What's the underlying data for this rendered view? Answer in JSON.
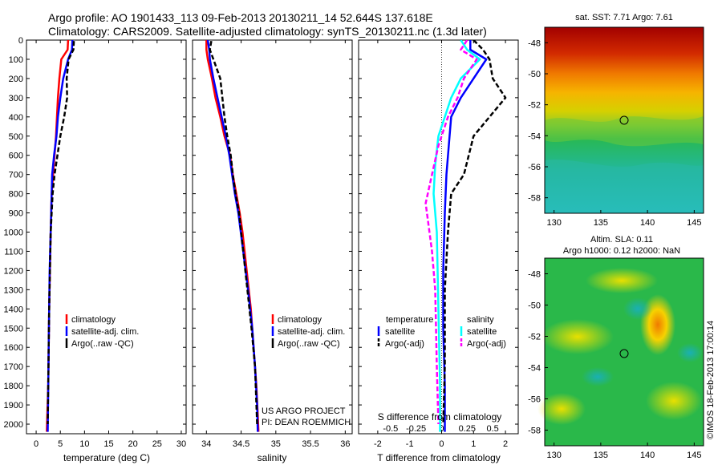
{
  "title": {
    "line1": "Argo profile: AO 1901433_113 09-Feb-2013 20130211_14 52.644S 137.618E",
    "line2": "Climatology: CARS2009. Satellite-adjusted climatology: synTS_20130211.nc (1.3d later)"
  },
  "colors": {
    "climatology": "#ff0000",
    "satellite": "#0000ff",
    "argo": "#000000",
    "salinity_satellite": "#00ffff",
    "salinity_argo": "#ff00ff"
  },
  "chart_data": [
    {
      "type": "line",
      "name": "temperature",
      "xlabel": "temperature (deg C)",
      "ylabel": "",
      "xlim": [
        -2,
        31
      ],
      "ylim": [
        2050,
        0
      ],
      "xticks": [
        0,
        5,
        10,
        15,
        20,
        25,
        30
      ],
      "yticks": [
        0,
        100,
        200,
        300,
        400,
        500,
        600,
        700,
        800,
        900,
        1000,
        1100,
        1200,
        1300,
        1400,
        1500,
        1600,
        1700,
        1800,
        1900,
        2000
      ],
      "legend": [
        "climatology",
        "satellite-adj. clim.",
        "Argo(..raw -QC)"
      ],
      "series": [
        {
          "name": "climatology",
          "x": [
            6.6,
            6.5,
            5.2,
            4.8,
            4.5,
            4.3,
            4.1,
            3.8,
            3.5,
            3.2,
            3.0,
            2.7,
            2.5,
            2.2
          ],
          "y": [
            0,
            50,
            100,
            200,
            300,
            400,
            500,
            600,
            700,
            800,
            1000,
            1400,
            1800,
            2040
          ]
        },
        {
          "name": "satellite-adj. clim.",
          "x": [
            7.5,
            7.4,
            6.6,
            5.6,
            5.0,
            4.5,
            4.2,
            3.7,
            3.3,
            3.1,
            2.8,
            2.6,
            2.4
          ],
          "y": [
            0,
            50,
            100,
            200,
            300,
            400,
            500,
            600,
            700,
            900,
            1200,
            1600,
            2040
          ]
        },
        {
          "name": "Argo(..raw -QC)",
          "x": [
            7.8,
            7.7,
            6.7,
            6.3,
            6.4,
            5.8,
            5.0,
            4.4,
            3.8,
            3.4,
            3.0,
            2.7,
            2.5,
            2.4
          ],
          "y": [
            5,
            50,
            100,
            200,
            300,
            400,
            500,
            600,
            700,
            800,
            1000,
            1400,
            1800,
            2000
          ]
        }
      ]
    },
    {
      "type": "line",
      "name": "salinity",
      "xlabel": "salinity",
      "ylabel": "",
      "xlim": [
        33.8,
        36.1
      ],
      "ylim": [
        2050,
        0
      ],
      "xticks": [
        34,
        34.5,
        35,
        35.5,
        36
      ],
      "legend": [
        "climatology",
        "satellite-adj. clim.",
        "Argo(..raw -QC)"
      ],
      "annotation": [
        "US ARGO PROJECT",
        "PI: DEAN ROEMMICH"
      ],
      "series": [
        {
          "name": "climatology",
          "x": [
            34.0,
            34.0,
            34.02,
            34.08,
            34.13,
            34.2,
            34.26,
            34.34,
            34.38,
            34.43,
            34.48,
            34.52,
            34.58,
            34.64,
            34.68,
            34.72,
            34.74,
            34.75
          ],
          "y": [
            0,
            50,
            100,
            200,
            300,
            400,
            500,
            600,
            700,
            800,
            900,
            1000,
            1200,
            1400,
            1600,
            1800,
            1950,
            2040
          ]
        },
        {
          "name": "satellite-adj. clim.",
          "x": [
            34.02,
            34.04,
            34.05,
            34.1,
            34.16,
            34.22,
            34.28,
            34.33,
            34.37,
            34.41,
            34.46,
            34.53,
            34.6,
            34.66,
            34.7,
            34.73,
            34.74
          ],
          "y": [
            0,
            50,
            100,
            200,
            300,
            400,
            500,
            600,
            700,
            800,
            900,
            1100,
            1300,
            1500,
            1700,
            1900,
            2040
          ]
        },
        {
          "name": "Argo(..raw -QC)",
          "x": [
            34.07,
            34.05,
            34.1,
            34.2,
            34.23,
            34.26,
            34.3,
            34.35,
            34.38,
            34.42,
            34.47,
            34.53,
            34.59,
            34.65,
            34.7,
            34.73
          ],
          "y": [
            5,
            50,
            100,
            200,
            300,
            400,
            500,
            600,
            700,
            800,
            900,
            1100,
            1300,
            1500,
            1700,
            2000
          ]
        }
      ]
    },
    {
      "type": "line",
      "name": "differences",
      "xlabel": "T difference from climatology",
      "x2label": "S difference from climatology",
      "xlim": [
        -2.6,
        2.4
      ],
      "ylim": [
        2050,
        0
      ],
      "xticks": [
        -2,
        -1,
        0,
        1,
        2
      ],
      "x2ticks": [
        "-0.5",
        "-0.25",
        "0",
        "0.25",
        "0.5"
      ],
      "legend_left_title": "temperature",
      "legend_right_title": "salinity",
      "legend_left": [
        "satellite",
        "Argo(-adj)"
      ],
      "legend_right": [
        "satellite",
        "Argo(-adj)"
      ],
      "series": [
        {
          "name": "temperature satellite",
          "x": [
            0.9,
            0.9,
            1.4,
            1.0,
            0.6,
            0.3,
            0.25,
            0.15,
            0.1,
            0.05,
            0.05,
            0.1,
            0.1
          ],
          "y": [
            0,
            50,
            100,
            200,
            300,
            400,
            500,
            700,
            900,
            1200,
            1500,
            1800,
            2040
          ]
        },
        {
          "name": "temperature Argo(-adj)",
          "x": [
            1.0,
            1.3,
            1.5,
            1.6,
            2.0,
            1.5,
            1.0,
            0.7,
            0.3,
            0.2,
            0.1,
            0.1,
            0.05
          ],
          "y": [
            0,
            50,
            100,
            200,
            300,
            400,
            500,
            700,
            800,
            1000,
            1300,
            1700,
            2000
          ]
        },
        {
          "name": "salinity satellite",
          "x": [
            0.6,
            0.8,
            1.2,
            0.6,
            0.3,
            0.1,
            -0.1,
            -0.2,
            -0.25,
            -0.15,
            -0.1,
            -0.05,
            -0.05
          ],
          "y": [
            0,
            50,
            100,
            200,
            300,
            400,
            500,
            650,
            800,
            1000,
            1400,
            1800,
            2040
          ]
        },
        {
          "name": "salinity Argo(-adj)",
          "x": [
            0.8,
            0.6,
            1.1,
            0.7,
            0.5,
            0.2,
            -0.1,
            -0.3,
            -0.5,
            -0.3,
            -0.2,
            -0.15,
            -0.1
          ],
          "y": [
            0,
            50,
            100,
            200,
            300,
            400,
            550,
            700,
            850,
            1100,
            1300,
            1700,
            2000
          ]
        }
      ]
    },
    {
      "type": "heatmap",
      "name": "sst map",
      "title": "sat. SST: 7.71  Argo: 7.61",
      "xlim": [
        129,
        146
      ],
      "ylim": [
        -59,
        -47
      ],
      "xticks": [
        130,
        135,
        140,
        145
      ],
      "yticks": [
        -48,
        -50,
        -52,
        -54,
        -56,
        -58
      ],
      "marker": {
        "lon": 137.618,
        "lat": -52.644
      }
    },
    {
      "type": "heatmap",
      "name": "sla map",
      "title": "Altim. SLA: 0.11",
      "subtitle": "Argo h1000: 0.12 h2000: NaN",
      "xlim": [
        129,
        146
      ],
      "ylim": [
        -59,
        -47
      ],
      "xticks": [
        130,
        135,
        140,
        145
      ],
      "yticks": [
        -48,
        -50,
        -52,
        -54,
        -56,
        -58
      ],
      "marker": {
        "lon": 137.618,
        "lat": -52.644
      }
    }
  ],
  "side_label": "©IMOS 18-Feb-2013 17:00:14"
}
